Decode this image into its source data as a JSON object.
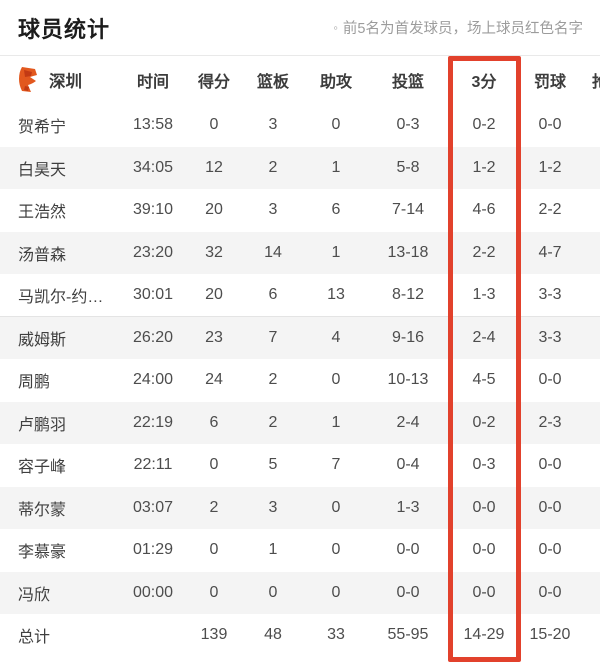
{
  "page": {
    "title": "球员统计",
    "note_bullet": "◦",
    "note": "前5名为首发球员，场上球员红色名字"
  },
  "team": {
    "name": "深圳",
    "logo": "shenzhen-leopards-emblem",
    "logo_color": "#e2581e",
    "logo_accent": "#c23a14"
  },
  "table": {
    "columns": [
      "时间",
      "得分",
      "篮板",
      "助攻",
      "投篮",
      "3分",
      "罚球",
      "抢断"
    ],
    "highlight_column": "3分",
    "highlight_color": "#e2412c",
    "starters_count": 5,
    "rows": [
      {
        "name": "贺希宁",
        "time": "13:58",
        "pts": "0",
        "reb": "3",
        "ast": "0",
        "fg": "0-3",
        "tp": "0-2",
        "ft": "0-0"
      },
      {
        "name": "白昊天",
        "time": "34:05",
        "pts": "12",
        "reb": "2",
        "ast": "1",
        "fg": "5-8",
        "tp": "1-2",
        "ft": "1-2"
      },
      {
        "name": "王浩然",
        "time": "39:10",
        "pts": "20",
        "reb": "3",
        "ast": "6",
        "fg": "7-14",
        "tp": "4-6",
        "ft": "2-2"
      },
      {
        "name": "汤普森",
        "time": "23:20",
        "pts": "32",
        "reb": "14",
        "ast": "1",
        "fg": "13-18",
        "tp": "2-2",
        "ft": "4-7"
      },
      {
        "name": "马凯尔-约…",
        "time": "30:01",
        "pts": "20",
        "reb": "6",
        "ast": "13",
        "fg": "8-12",
        "tp": "1-3",
        "ft": "3-3"
      },
      {
        "name": "威姆斯",
        "time": "26:20",
        "pts": "23",
        "reb": "7",
        "ast": "4",
        "fg": "9-16",
        "tp": "2-4",
        "ft": "3-3"
      },
      {
        "name": "周鹏",
        "time": "24:00",
        "pts": "24",
        "reb": "2",
        "ast": "0",
        "fg": "10-13",
        "tp": "4-5",
        "ft": "0-0"
      },
      {
        "name": "卢鹏羽",
        "time": "22:19",
        "pts": "6",
        "reb": "2",
        "ast": "1",
        "fg": "2-4",
        "tp": "0-2",
        "ft": "2-3"
      },
      {
        "name": "容子峰",
        "time": "22:11",
        "pts": "0",
        "reb": "5",
        "ast": "7",
        "fg": "0-4",
        "tp": "0-3",
        "ft": "0-0"
      },
      {
        "name": "蒂尔蒙",
        "time": "03:07",
        "pts": "2",
        "reb": "3",
        "ast": "0",
        "fg": "1-3",
        "tp": "0-0",
        "ft": "0-0"
      },
      {
        "name": "李慕豪",
        "time": "01:29",
        "pts": "0",
        "reb": "1",
        "ast": "0",
        "fg": "0-0",
        "tp": "0-0",
        "ft": "0-0"
      },
      {
        "name": "冯欣",
        "time": "00:00",
        "pts": "0",
        "reb": "0",
        "ast": "0",
        "fg": "0-0",
        "tp": "0-0",
        "ft": "0-0"
      }
    ],
    "total": {
      "name": "总计",
      "time": "",
      "pts": "139",
      "reb": "48",
      "ast": "33",
      "fg": "55-95",
      "tp": "14-29",
      "ft": "15-20"
    }
  }
}
